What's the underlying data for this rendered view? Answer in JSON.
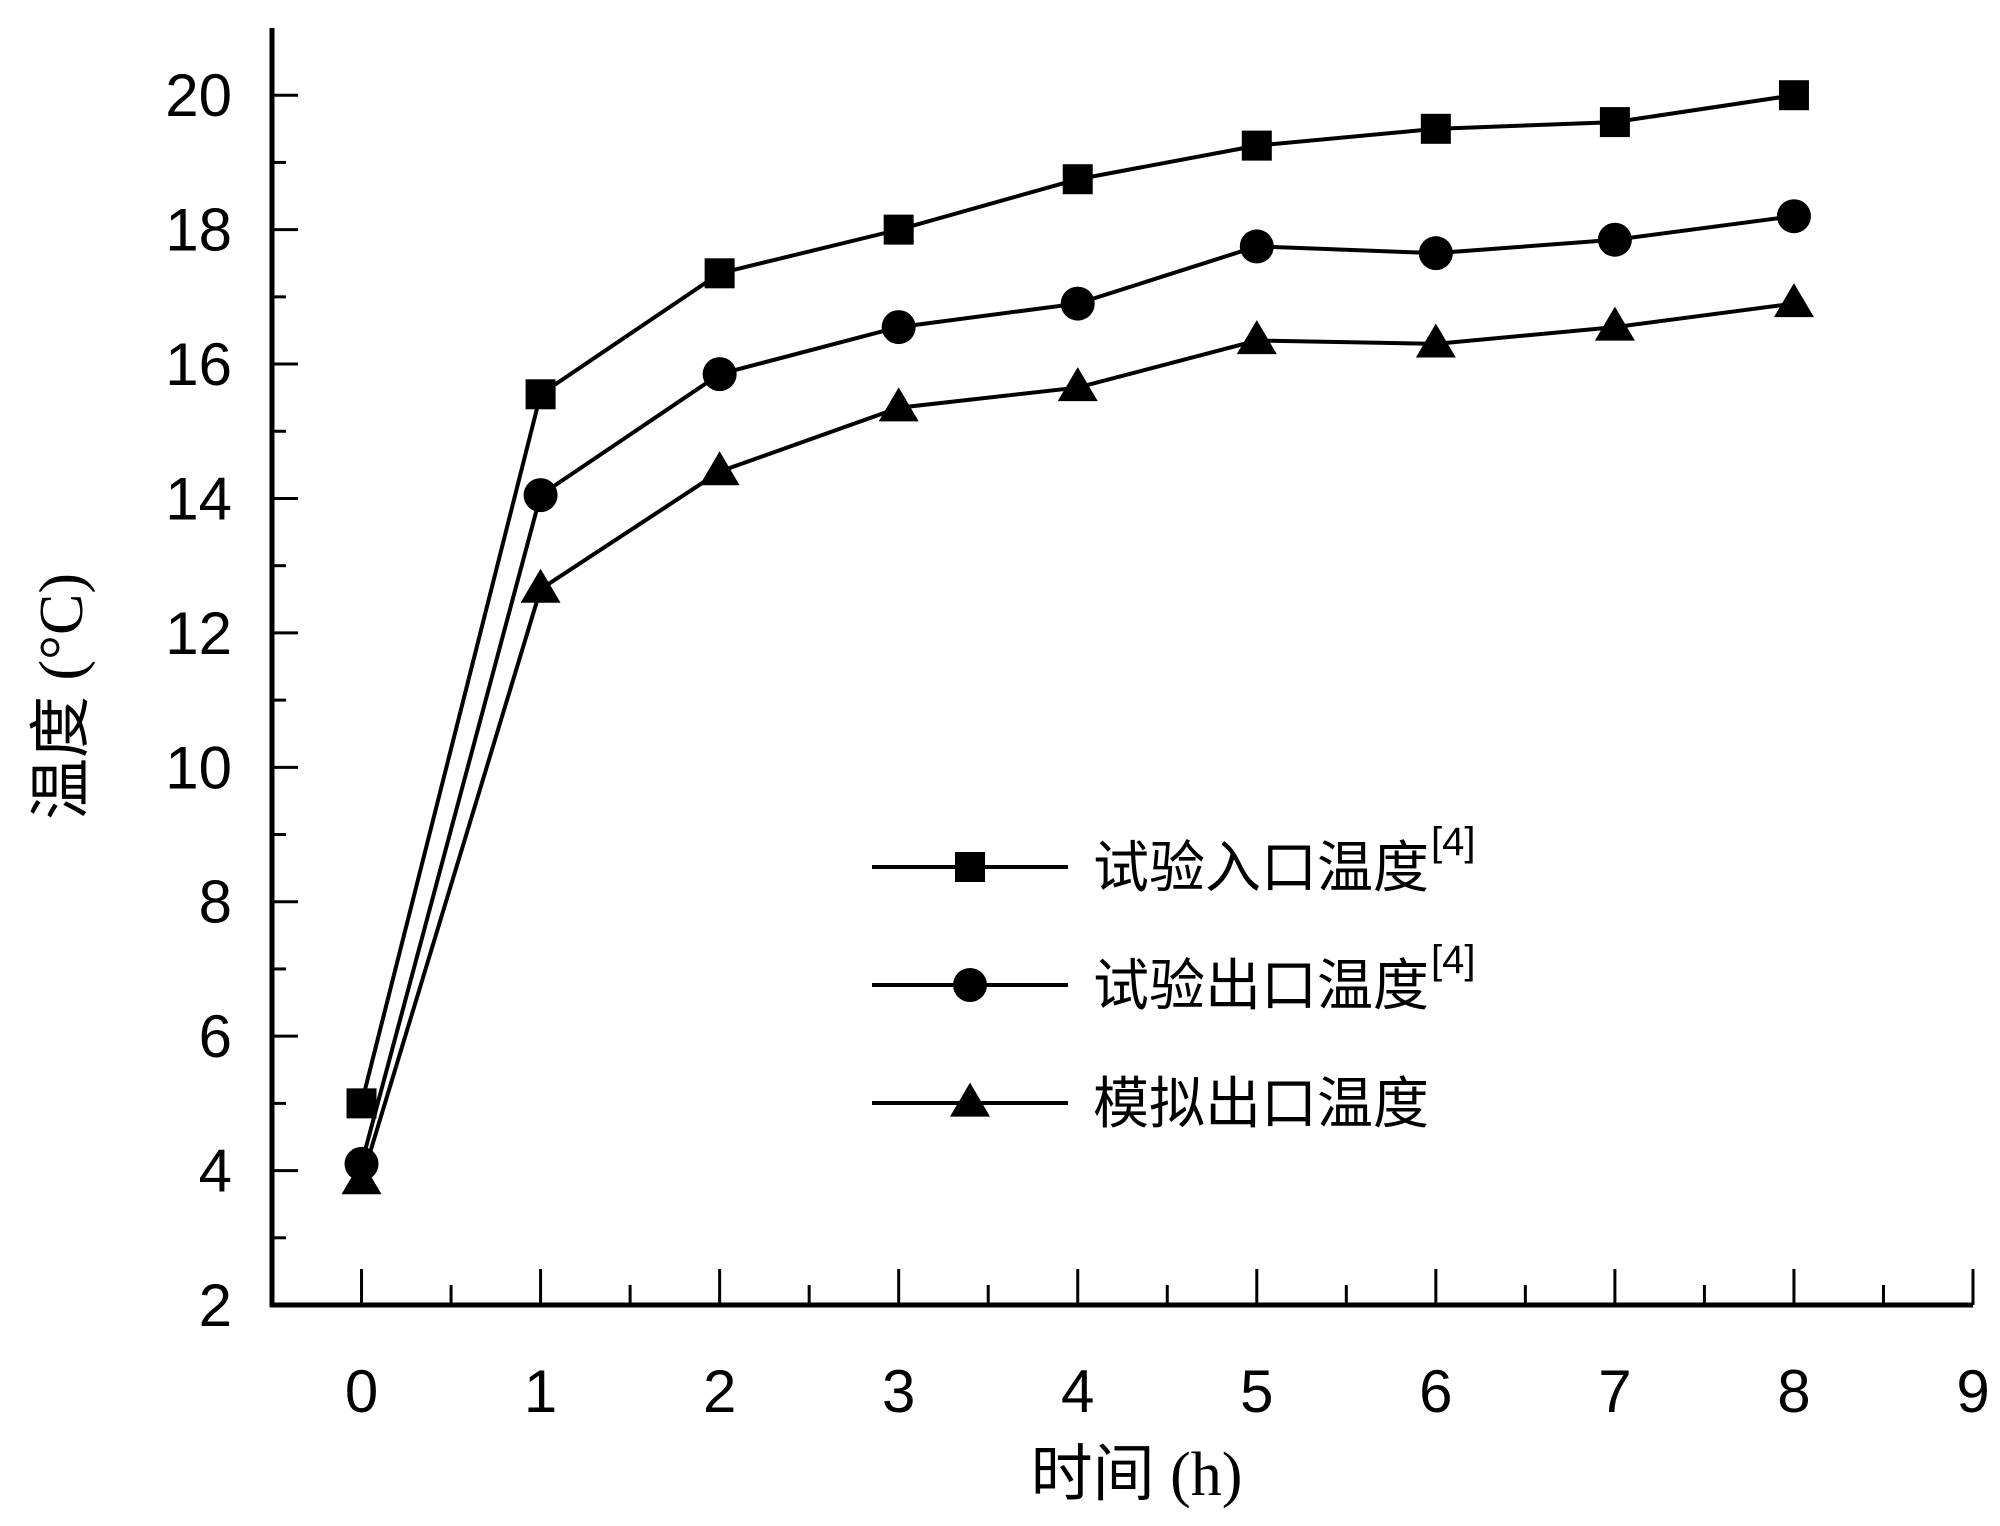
{
  "chart_data": {
    "type": "line",
    "title": "",
    "xlabel": "时间 (h)",
    "ylabel": "温度 (°C)",
    "xlim": [
      -0.5,
      9
    ],
    "ylim": [
      2,
      21
    ],
    "xticks": [
      0,
      1,
      2,
      3,
      4,
      5,
      6,
      7,
      8,
      9
    ],
    "yticks": [
      2,
      4,
      6,
      8,
      10,
      12,
      14,
      16,
      18,
      20
    ],
    "grid": false,
    "legend_position": "lower-right",
    "x": [
      0,
      1,
      2,
      3,
      4,
      5,
      6,
      7,
      8
    ],
    "series": [
      {
        "name": "试验入口温度",
        "name_superscript": "[4]",
        "marker": "square",
        "values": [
          5.0,
          15.55,
          17.35,
          18.0,
          18.75,
          19.25,
          19.5,
          19.6,
          20.0
        ]
      },
      {
        "name": "试验出口温度",
        "name_superscript": "[4]",
        "marker": "circle",
        "values": [
          4.1,
          14.05,
          15.85,
          16.55,
          16.9,
          17.75,
          17.65,
          17.85,
          18.2
        ]
      },
      {
        "name": "模拟出口温度",
        "name_superscript": "",
        "marker": "triangle",
        "values": [
          3.85,
          12.65,
          14.4,
          15.35,
          15.65,
          16.35,
          16.3,
          16.55,
          16.9
        ]
      }
    ],
    "colors": {
      "line": "#000000",
      "marker": "#000000"
    }
  }
}
